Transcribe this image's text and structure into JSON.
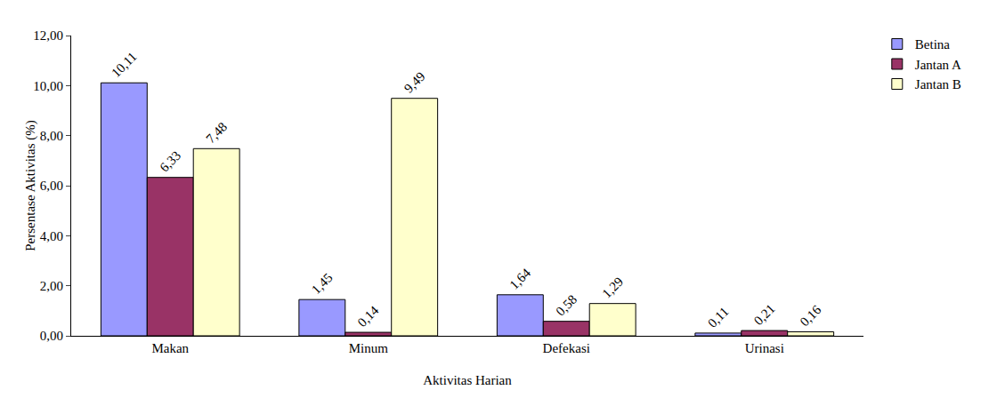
{
  "chart_data": {
    "type": "bar",
    "x_label": "Aktivitas Harian",
    "y_label": "Persentase Aktivitas (%)",
    "categories": [
      "Makan",
      "Minum",
      "Defekasi",
      "Urinasi"
    ],
    "series": [
      {
        "name": "Betina",
        "color": "#9999ff",
        "values": [
          10.11,
          1.45,
          1.64,
          0.11
        ],
        "value_labels": [
          "10,11",
          "1,45",
          "1,64",
          "0,11"
        ]
      },
      {
        "name": "Jantan A",
        "color": "#993366",
        "values": [
          6.33,
          0.14,
          0.58,
          0.21
        ],
        "value_labels": [
          "6,33",
          "0,14",
          "0,58",
          "0,21"
        ]
      },
      {
        "name": "Jantan B",
        "color": "#ffffcc",
        "values": [
          7.48,
          9.49,
          1.29,
          0.16
        ],
        "value_labels": [
          "7,48",
          "9,49",
          "1,29",
          "0,16"
        ]
      }
    ],
    "ylim": [
      0,
      12
    ],
    "yticks": [
      {
        "value": 0,
        "label": "0,00"
      },
      {
        "value": 2,
        "label": "2,00"
      },
      {
        "value": 4,
        "label": "4,00"
      },
      {
        "value": 6,
        "label": "6,00"
      },
      {
        "value": 8,
        "label": "8,00"
      },
      {
        "value": 10,
        "label": "10,00"
      },
      {
        "value": 12,
        "label": "12,00"
      }
    ],
    "grid": false,
    "legend": "top right",
    "data_labels": true
  }
}
